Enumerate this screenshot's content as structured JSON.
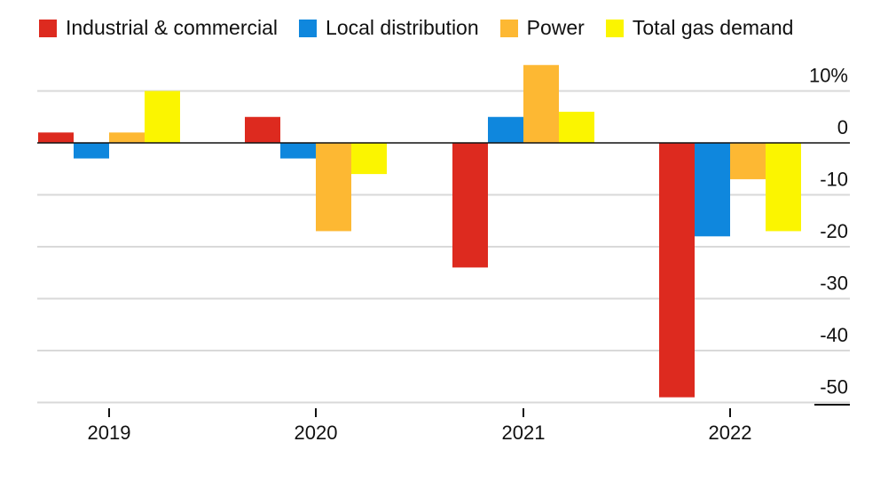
{
  "chart_data": {
    "type": "bar",
    "categories": [
      "2019",
      "2020",
      "2021",
      "2022"
    ],
    "series": [
      {
        "name": "Industrial & commercial",
        "color": "#dd2a1f",
        "values": [
          2,
          5,
          -24,
          -49
        ]
      },
      {
        "name": "Local distribution",
        "color": "#0f87dd",
        "values": [
          -3,
          -3,
          5,
          -18
        ]
      },
      {
        "name": "Power",
        "color": "#fdb833",
        "values": [
          2,
          -17,
          15,
          -7
        ]
      },
      {
        "name": "Total gas demand",
        "color": "#fbf500",
        "values": [
          10,
          -6,
          6,
          -17
        ]
      }
    ],
    "ylim": [
      -50,
      10
    ],
    "yticks": [
      {
        "value": 10,
        "label": "10%"
      },
      {
        "value": 0,
        "label": "0"
      },
      {
        "value": -10,
        "label": "-10"
      },
      {
        "value": -20,
        "label": "-20"
      },
      {
        "value": -30,
        "label": "-30"
      },
      {
        "value": -40,
        "label": "-40"
      },
      {
        "value": -50,
        "label": "-50"
      }
    ],
    "grid": true,
    "legend": "top-left",
    "title": "",
    "xlabel": "",
    "ylabel": ""
  }
}
